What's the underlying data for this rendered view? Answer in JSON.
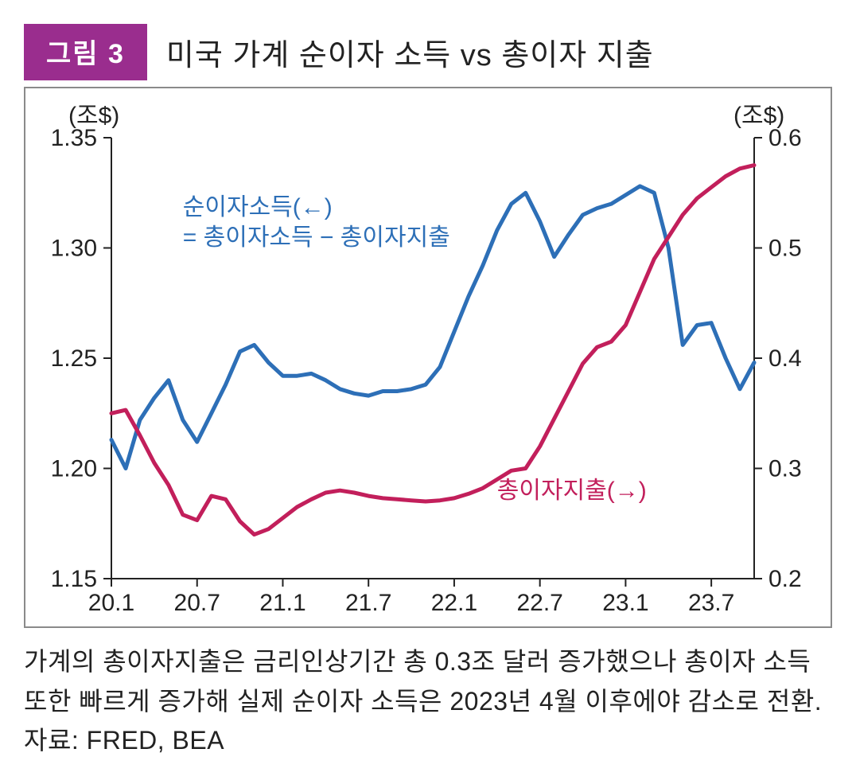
{
  "badge": "그림 3",
  "title": "미국 가계 순이자 소득 vs 총이자 지출",
  "caption": "가계의 총이자지출은 금리인상기간 총 0.3조 달러 증가했으나 총이자 소득 또한 빠르게 증가해 실제 순이자 소득은 2023년 4월 이후에야 감소로 전환. 자료: FRED, BEA",
  "chart": {
    "type": "line-dual-axis",
    "background_color": "#ffffff",
    "border_color": "#8a8a8a",
    "axis_color": "#222222",
    "axis_width": 2,
    "tick_length": 10,
    "left_axis": {
      "unit_label": "(조$)",
      "unit_fontsize": 30,
      "min": 1.15,
      "max": 1.35,
      "ticks": [
        1.15,
        1.2,
        1.25,
        1.3,
        1.35
      ],
      "tick_fontsize": 30,
      "label_color": "#222222"
    },
    "right_axis": {
      "unit_label": "(조$)",
      "unit_fontsize": 30,
      "min": 0.2,
      "max": 0.6,
      "ticks": [
        0.2,
        0.3,
        0.4,
        0.5,
        0.6
      ],
      "tick_fontsize": 30,
      "label_color": "#222222"
    },
    "x_axis": {
      "categories_count": 46,
      "tick_labels": [
        "20.1",
        "20.7",
        "21.1",
        "21.7",
        "22.1",
        "22.7",
        "23.1",
        "23.7"
      ],
      "tick_positions_idx": [
        0,
        6,
        12,
        18,
        24,
        30,
        36,
        42
      ],
      "tick_fontsize": 30
    },
    "series": [
      {
        "name": "순이자소득",
        "axis": "left",
        "color": "#2d6fb7",
        "line_width": 5,
        "legend_text_1": "순이자소득(←)",
        "legend_text_2": "= 총이자소득  − 총이자지출",
        "legend_x_idx": 5,
        "legend_y_left": 1.315,
        "legend_fontsize": 30,
        "values": [
          1.213,
          1.2,
          1.222,
          1.232,
          1.24,
          1.222,
          1.212,
          1.225,
          1.238,
          1.253,
          1.256,
          1.248,
          1.242,
          1.242,
          1.243,
          1.24,
          1.236,
          1.234,
          1.233,
          1.235,
          1.235,
          1.236,
          1.238,
          1.246,
          1.262,
          1.278,
          1.292,
          1.308,
          1.32,
          1.325,
          1.312,
          1.296,
          1.306,
          1.315,
          1.318,
          1.32,
          1.324,
          1.328,
          1.325,
          1.3,
          1.256,
          1.265,
          1.266,
          1.25,
          1.236,
          1.248
        ]
      },
      {
        "name": "총이자지출",
        "axis": "right",
        "color": "#c21f5b",
        "line_width": 5,
        "legend_text_1": "총이자지출(→)",
        "legend_x_idx": 27,
        "legend_y_right": 0.273,
        "legend_fontsize": 30,
        "values": [
          0.35,
          0.353,
          0.33,
          0.305,
          0.285,
          0.258,
          0.253,
          0.275,
          0.272,
          0.252,
          0.24,
          0.245,
          0.255,
          0.265,
          0.272,
          0.278,
          0.28,
          0.278,
          0.275,
          0.273,
          0.272,
          0.271,
          0.27,
          0.271,
          0.273,
          0.277,
          0.282,
          0.29,
          0.298,
          0.3,
          0.32,
          0.345,
          0.37,
          0.395,
          0.41,
          0.415,
          0.43,
          0.46,
          0.49,
          0.51,
          0.53,
          0.545,
          0.555,
          0.565,
          0.572,
          0.575
        ]
      }
    ]
  },
  "colors": {
    "badge_bg": "#9a2d8e",
    "badge_fg": "#ffffff",
    "text": "#222222"
  }
}
